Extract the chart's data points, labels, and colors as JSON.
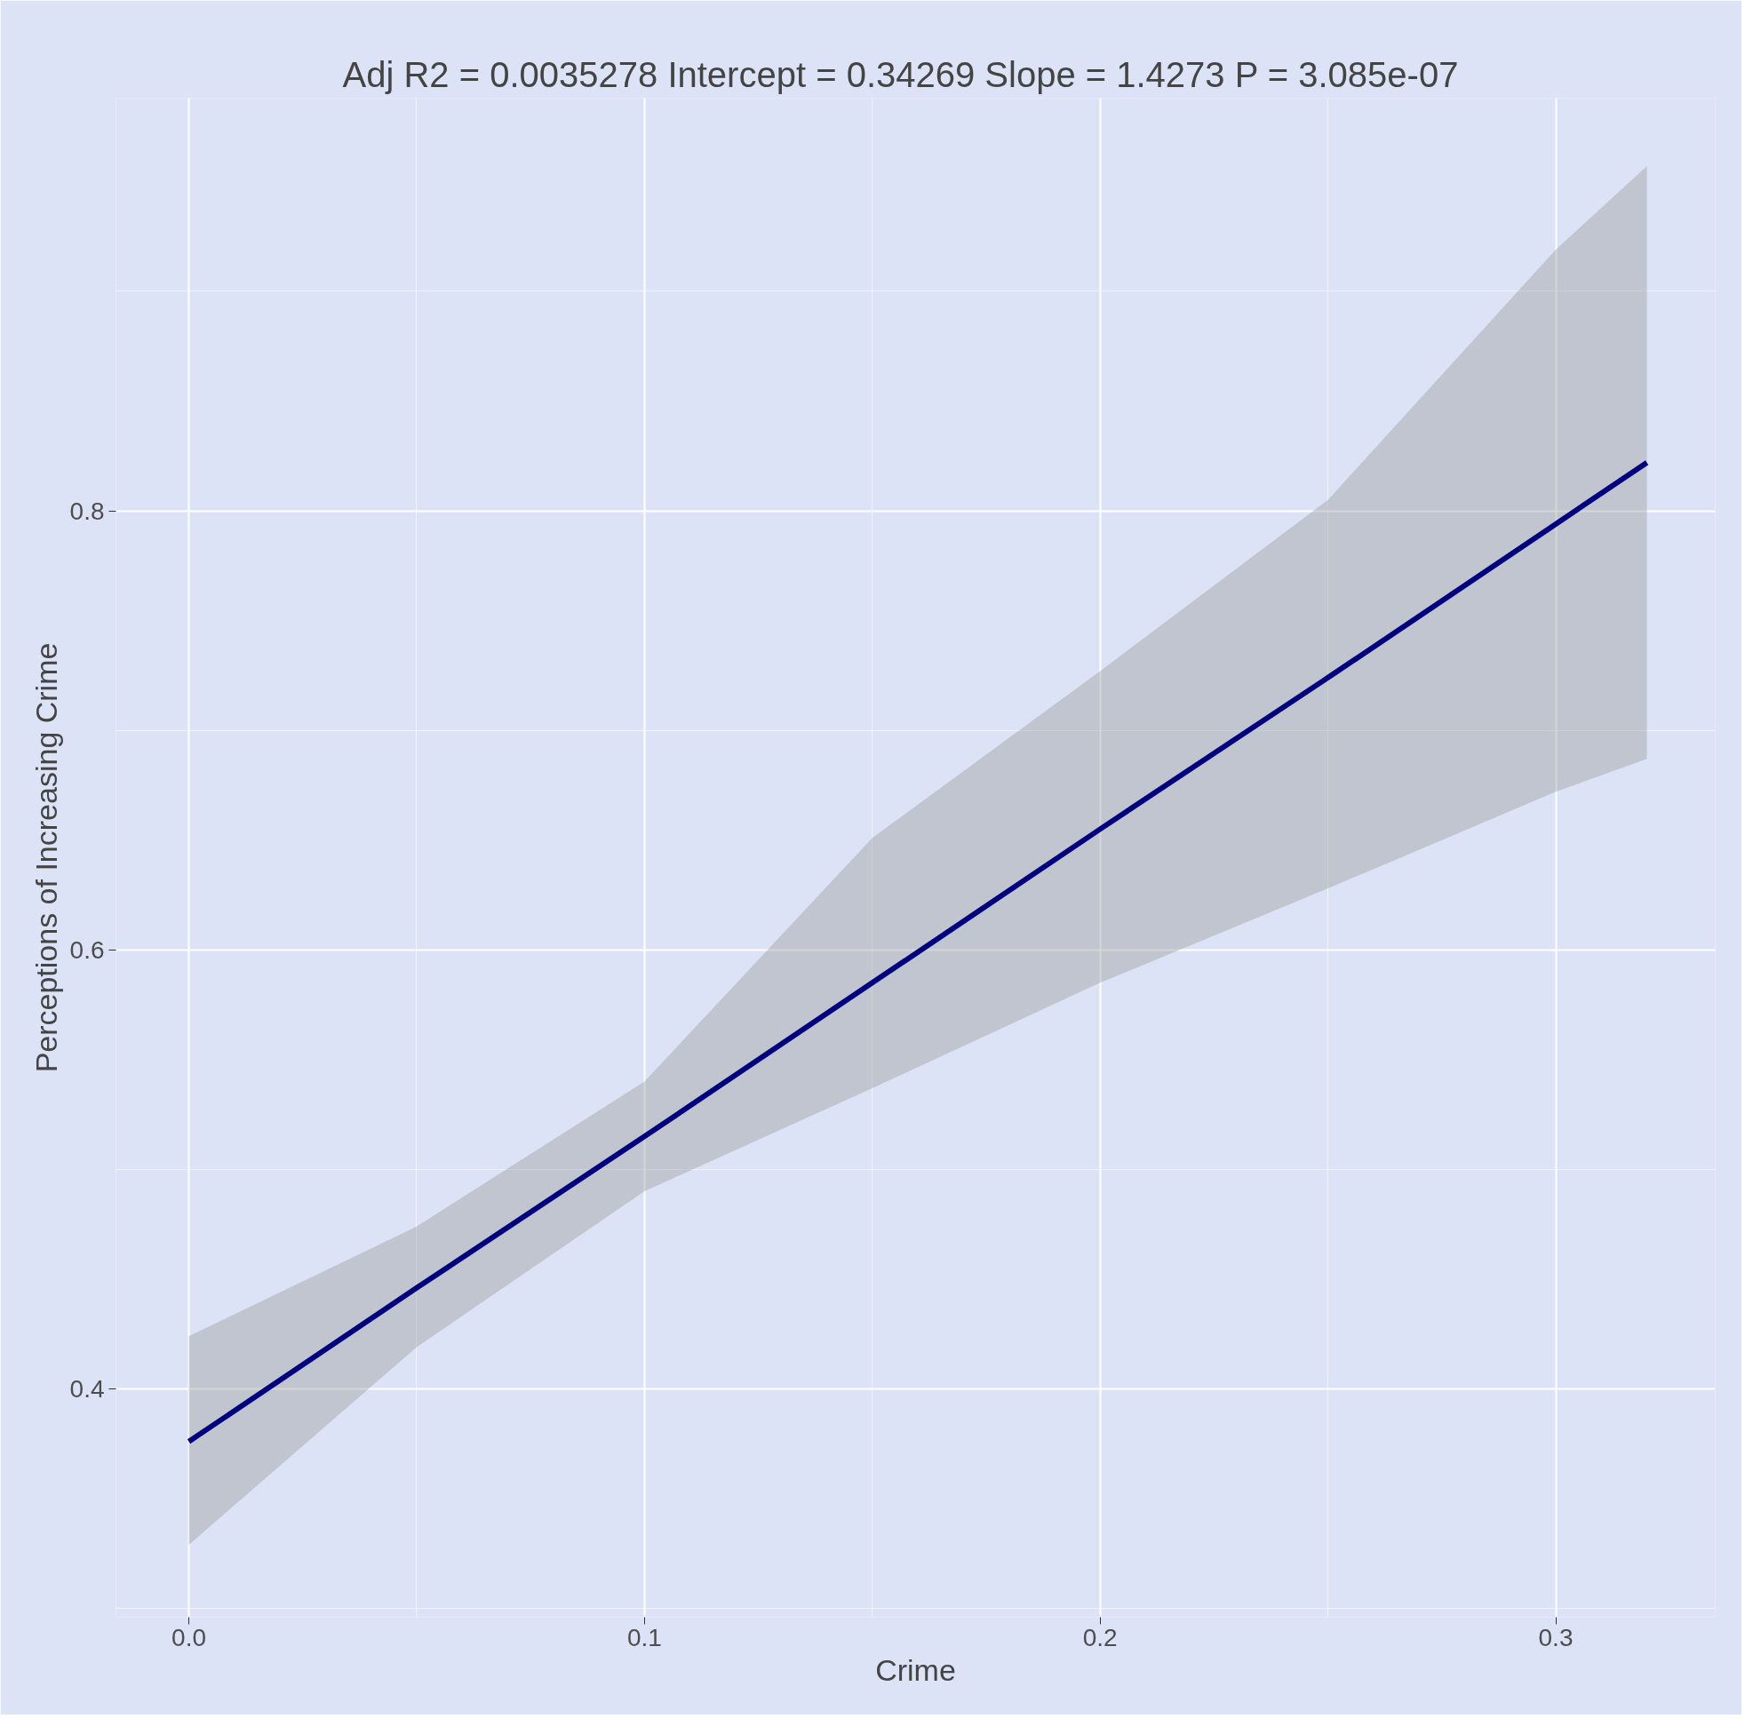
{
  "chart_data": {
    "type": "line",
    "title": "Adj R2 =  0.0035278 Intercept = 0.34269  Slope = 1.4273  P = 3.085e-07",
    "xlabel": "Crime",
    "ylabel": "Perceptions of Increasing Crime",
    "x": [
      0,
      0.05,
      0.1,
      0.15,
      0.2,
      0.25,
      0.3,
      0.32
    ],
    "series": [
      {
        "color": "#00007f",
        "values": [
          0.376,
          0.446,
          0.515,
          0.585,
          0.655,
          0.724,
          0.794,
          0.822
        ],
        "lower": [
          0.329,
          0.419,
          0.49,
          0.537,
          0.585,
          0.628,
          0.672,
          0.687
        ],
        "upper": [
          0.424,
          0.474,
          0.54,
          0.651,
          0.727,
          0.805,
          0.919,
          0.957
        ]
      }
    ],
    "xlim": [
      -0.016,
      0.335
    ],
    "ylim": [
      0.296,
      0.988
    ],
    "xticks": [
      {
        "value": 0,
        "label": "0.0"
      },
      0.1,
      0.2,
      0.3
    ],
    "yticks": [
      0.4,
      0.6,
      0.8
    ],
    "grid": true,
    "marker": "none",
    "line_style": "solid"
  }
}
